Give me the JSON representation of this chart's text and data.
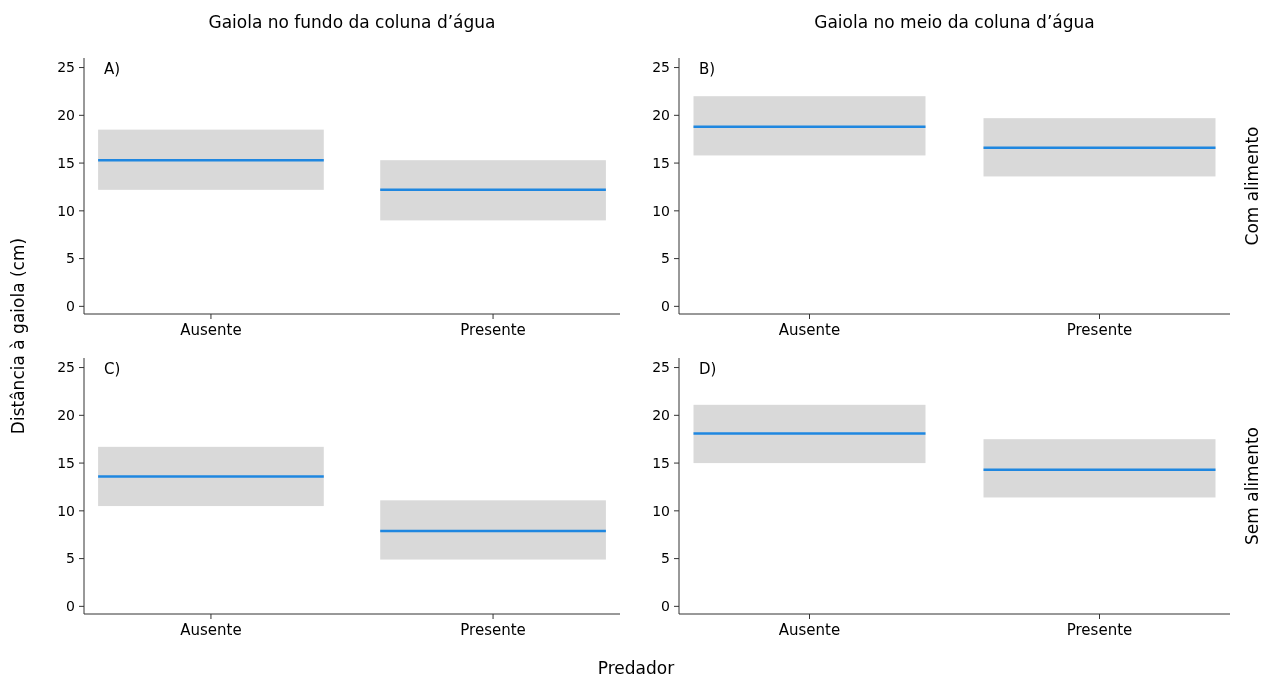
{
  "chart_data": [
    {
      "type": "box",
      "title": "Gaiola no fundo da coluna d’água",
      "ylabel": "Distância à gaiola (cm)",
      "annotations": [
        "A)"
      ],
      "categories": [
        "Ausente",
        "Presente"
      ],
      "color": "#1f87e0",
      "ylim": [
        -0.8,
        26
      ],
      "yticks": [
        0,
        5,
        10,
        15,
        20,
        25
      ],
      "series": [
        {
          "color": "#d9d9d9",
          "boxes": [
            {
              "low": 12.2,
              "q1": 12.2,
              "median": 15.3,
              "q3": 18.5,
              "high": 18.5
            },
            {
              "low": 9.0,
              "q1": 9.0,
              "median": 12.2,
              "q3": 15.3,
              "high": 15.3
            }
          ]
        }
      ]
    },
    {
      "type": "box",
      "title": "Gaiola no meio da coluna d’água",
      "y2label": "Com alimento",
      "annotations": [
        "B)"
      ],
      "categories": [
        "Ausente",
        "Presente"
      ],
      "color": "#1f87e0",
      "ylim": [
        -0.8,
        26
      ],
      "yticks": [
        0,
        5,
        10,
        15,
        20,
        25
      ],
      "series": [
        {
          "color": "#d9d9d9",
          "boxes": [
            {
              "low": 15.8,
              "q1": 15.8,
              "median": 18.8,
              "q3": 22.0,
              "high": 22.0
            },
            {
              "low": 13.6,
              "q1": 13.6,
              "median": 16.6,
              "q3": 19.7,
              "high": 19.7
            }
          ]
        }
      ]
    },
    {
      "type": "box",
      "xlabel": "Predador",
      "annotations": [
        "C)"
      ],
      "categories": [
        "Ausente",
        "Presente"
      ],
      "color": "#1f87e0",
      "ylim": [
        -0.8,
        26
      ],
      "yticks": [
        0,
        5,
        10,
        15,
        20,
        25
      ],
      "series": [
        {
          "color": "#d9d9d9",
          "boxes": [
            {
              "low": 10.5,
              "q1": 10.5,
              "median": 13.6,
              "q3": 16.7,
              "high": 16.7
            },
            {
              "low": 4.9,
              "q1": 4.9,
              "median": 7.9,
              "q3": 11.1,
              "high": 11.1
            }
          ]
        }
      ]
    },
    {
      "type": "box",
      "y2label": "Sem alimento",
      "annotations": [
        "D)"
      ],
      "categories": [
        "Ausente",
        "Presente"
      ],
      "color": "#1f87e0",
      "ylim": [
        -0.8,
        26
      ],
      "yticks": [
        0,
        5,
        10,
        15,
        20,
        25
      ],
      "series": [
        {
          "color": "#d9d9d9",
          "boxes": [
            {
              "low": 15.0,
              "q1": 15.0,
              "median": 18.1,
              "q3": 21.1,
              "high": 21.1
            },
            {
              "low": 11.4,
              "q1": 11.4,
              "median": 14.3,
              "q3": 17.5,
              "high": 17.5
            }
          ]
        }
      ]
    }
  ]
}
